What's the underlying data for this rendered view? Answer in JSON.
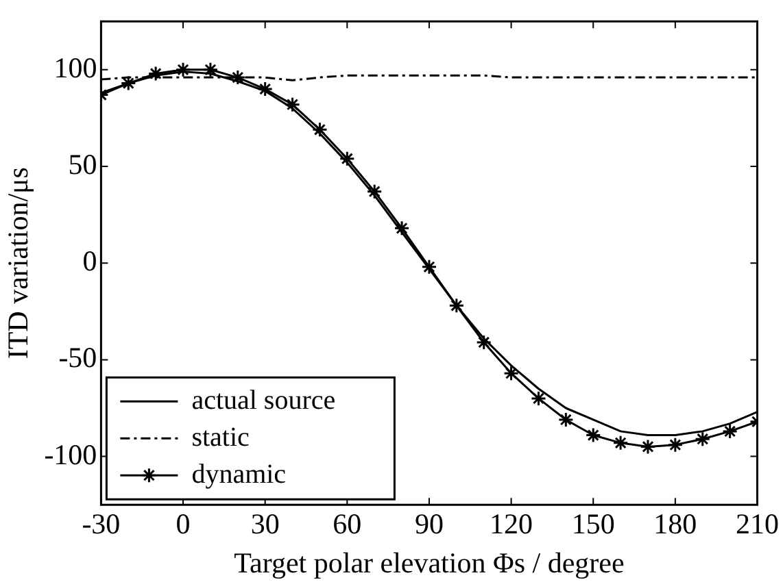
{
  "chart_data": {
    "type": "line",
    "xlabel": "Target polar elevation Φs / degree",
    "ylabel": "ITD variation/μs",
    "x": [
      -30,
      -20,
      -10,
      0,
      10,
      20,
      30,
      40,
      50,
      60,
      70,
      80,
      90,
      100,
      110,
      120,
      130,
      140,
      150,
      160,
      170,
      180,
      190,
      200,
      210
    ],
    "series": [
      {
        "name": "actual source",
        "color": "#000000",
        "line_style": "solid",
        "marker": "none",
        "values": [
          88,
          93,
          97,
          99,
          98,
          94,
          89,
          80,
          67,
          52,
          35,
          16,
          -3,
          -22,
          -39,
          -53,
          -65,
          -75,
          -81,
          -87,
          -89,
          -89,
          -87,
          -83,
          -77
        ]
      },
      {
        "name": "static",
        "color": "#000000",
        "line_style": "dashdot",
        "marker": "none",
        "values": [
          95,
          96,
          96,
          96,
          96,
          96,
          96,
          94.5,
          96,
          97,
          97,
          97,
          97,
          97,
          97,
          96,
          96,
          96,
          96,
          96,
          96,
          96,
          96,
          96,
          96
        ]
      },
      {
        "name": "dynamic",
        "color": "#000000",
        "line_style": "solid",
        "marker": "cross",
        "values": [
          87,
          93,
          98,
          100,
          100,
          96,
          90,
          82,
          69,
          54,
          37,
          18,
          -2,
          -22,
          -41,
          -57,
          -70,
          -81,
          -89,
          -93,
          -95,
          -94,
          -91,
          -87,
          -82
        ]
      }
    ],
    "xlim": [
      -30,
      210
    ],
    "xticks": [
      -30,
      0,
      30,
      60,
      90,
      120,
      150,
      180,
      210
    ],
    "ylim": [
      -125,
      125
    ],
    "yticks": [
      -100,
      -50,
      0,
      50,
      100
    ],
    "grid": false,
    "legend": "bottom left"
  }
}
